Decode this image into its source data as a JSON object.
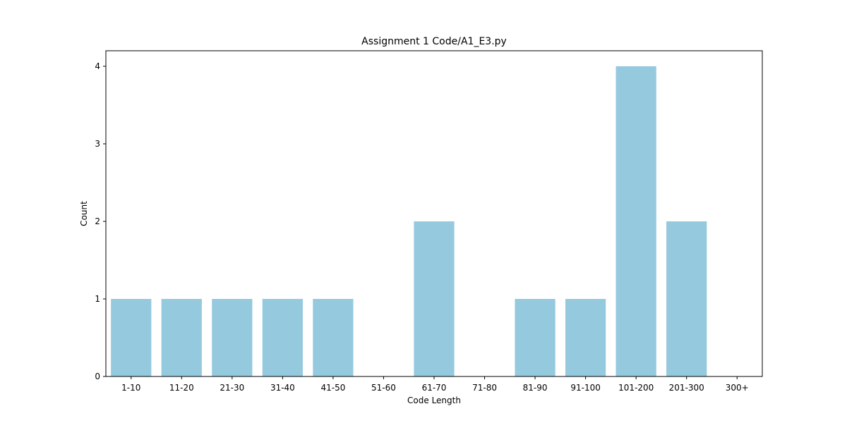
{
  "chart_data": {
    "type": "bar",
    "title": "Assignment 1 Code/A1_E3.py",
    "xlabel": "Code Length",
    "ylabel": "Count",
    "categories": [
      "1-10",
      "11-20",
      "21-30",
      "31-40",
      "41-50",
      "51-60",
      "61-70",
      "71-80",
      "81-90",
      "91-100",
      "101-200",
      "201-300",
      "300+"
    ],
    "values": [
      1,
      1,
      1,
      1,
      1,
      0,
      2,
      0,
      1,
      1,
      4,
      2,
      0
    ],
    "ylim": [
      0,
      4.2
    ],
    "yticks": [
      0,
      1,
      2,
      3,
      4
    ],
    "grid": false,
    "colors": {
      "bar": "#95c9de",
      "axis": "#000000"
    }
  }
}
